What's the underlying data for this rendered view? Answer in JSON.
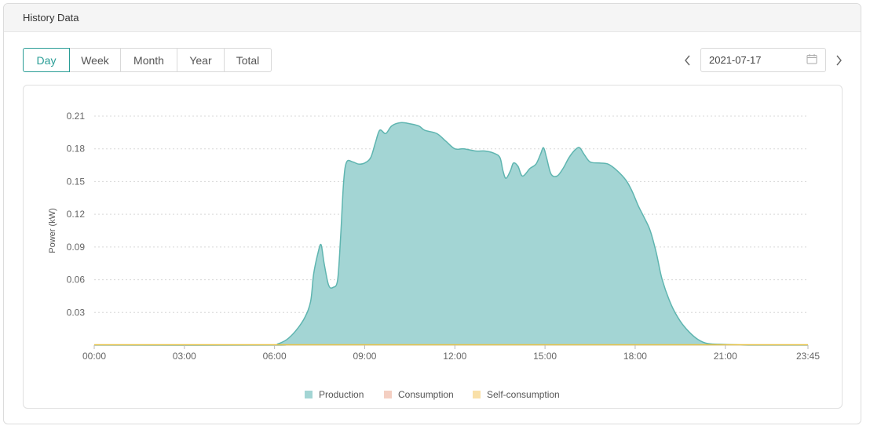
{
  "header": {
    "title": "History Data"
  },
  "tabs": [
    {
      "label": "Day",
      "active": true
    },
    {
      "label": "Week",
      "active": false
    },
    {
      "label": "Month",
      "active": false
    },
    {
      "label": "Year",
      "active": false
    },
    {
      "label": "Total",
      "active": false
    }
  ],
  "date_picker": {
    "value": "2021-07-17",
    "prev_icon": "chevron-left-icon",
    "next_icon": "chevron-right-icon",
    "calendar_icon": "calendar-icon"
  },
  "chart_data": {
    "type": "area",
    "ylabel": "Power  (kW)",
    "ylim": [
      0,
      0.21
    ],
    "yticks": [
      "0.03",
      "0.06",
      "0.09",
      "0.12",
      "0.15",
      "0.18",
      "0.21"
    ],
    "xlim_hours": [
      0,
      23.75
    ],
    "xticks": [
      {
        "h": 0,
        "label": "00:00"
      },
      {
        "h": 3,
        "label": "03:00"
      },
      {
        "h": 6,
        "label": "06:00"
      },
      {
        "h": 9,
        "label": "09:00"
      },
      {
        "h": 12,
        "label": "12:00"
      },
      {
        "h": 15,
        "label": "15:00"
      },
      {
        "h": 18,
        "label": "18:00"
      },
      {
        "h": 21,
        "label": "21:00"
      },
      {
        "h": 23.75,
        "label": "23:45"
      }
    ],
    "grid": true,
    "legend_position": "bottom-center",
    "series": [
      {
        "name": "Production",
        "color": "#a3d5d4",
        "line": "#5fb5b0",
        "points": [
          [
            0,
            0
          ],
          [
            5.9,
            0
          ],
          [
            6.1,
            0.001
          ],
          [
            6.4,
            0.005
          ],
          [
            6.7,
            0.013
          ],
          [
            7.0,
            0.025
          ],
          [
            7.2,
            0.04
          ],
          [
            7.3,
            0.065
          ],
          [
            7.45,
            0.085
          ],
          [
            7.55,
            0.092
          ],
          [
            7.65,
            0.075
          ],
          [
            7.8,
            0.055
          ],
          [
            7.95,
            0.053
          ],
          [
            8.1,
            0.06
          ],
          [
            8.2,
            0.1
          ],
          [
            8.3,
            0.15
          ],
          [
            8.4,
            0.168
          ],
          [
            8.6,
            0.168
          ],
          [
            8.8,
            0.166
          ],
          [
            9.0,
            0.167
          ],
          [
            9.2,
            0.172
          ],
          [
            9.35,
            0.185
          ],
          [
            9.5,
            0.197
          ],
          [
            9.7,
            0.194
          ],
          [
            9.9,
            0.201
          ],
          [
            10.2,
            0.204
          ],
          [
            10.5,
            0.203
          ],
          [
            10.8,
            0.201
          ],
          [
            11.0,
            0.197
          ],
          [
            11.4,
            0.194
          ],
          [
            11.7,
            0.187
          ],
          [
            12.0,
            0.18
          ],
          [
            12.3,
            0.18
          ],
          [
            12.7,
            0.178
          ],
          [
            13.0,
            0.178
          ],
          [
            13.3,
            0.176
          ],
          [
            13.5,
            0.172
          ],
          [
            13.6,
            0.16
          ],
          [
            13.7,
            0.153
          ],
          [
            13.85,
            0.16
          ],
          [
            13.95,
            0.167
          ],
          [
            14.1,
            0.164
          ],
          [
            14.25,
            0.155
          ],
          [
            14.5,
            0.162
          ],
          [
            14.7,
            0.166
          ],
          [
            14.85,
            0.175
          ],
          [
            14.95,
            0.181
          ],
          [
            15.05,
            0.172
          ],
          [
            15.2,
            0.157
          ],
          [
            15.4,
            0.155
          ],
          [
            15.6,
            0.162
          ],
          [
            15.8,
            0.172
          ],
          [
            16.0,
            0.179
          ],
          [
            16.15,
            0.181
          ],
          [
            16.3,
            0.175
          ],
          [
            16.5,
            0.168
          ],
          [
            16.8,
            0.167
          ],
          [
            17.1,
            0.166
          ],
          [
            17.4,
            0.16
          ],
          [
            17.7,
            0.151
          ],
          [
            17.9,
            0.141
          ],
          [
            18.1,
            0.128
          ],
          [
            18.3,
            0.117
          ],
          [
            18.5,
            0.105
          ],
          [
            18.7,
            0.085
          ],
          [
            18.9,
            0.06
          ],
          [
            19.2,
            0.037
          ],
          [
            19.5,
            0.022
          ],
          [
            19.8,
            0.012
          ],
          [
            20.1,
            0.005
          ],
          [
            20.4,
            0.0015
          ],
          [
            20.8,
            0.0008
          ],
          [
            21.5,
            0.0002
          ],
          [
            22.0,
            0
          ],
          [
            23.75,
            0
          ]
        ]
      },
      {
        "name": "Consumption",
        "color": "#f4cfc2",
        "points": [
          [
            0,
            0
          ],
          [
            23.75,
            0
          ]
        ]
      },
      {
        "name": "Self-consumption",
        "color": "#f9e0a8",
        "line": "#e8c44a",
        "points": [
          [
            0,
            0
          ],
          [
            23.75,
            0
          ]
        ]
      }
    ]
  }
}
